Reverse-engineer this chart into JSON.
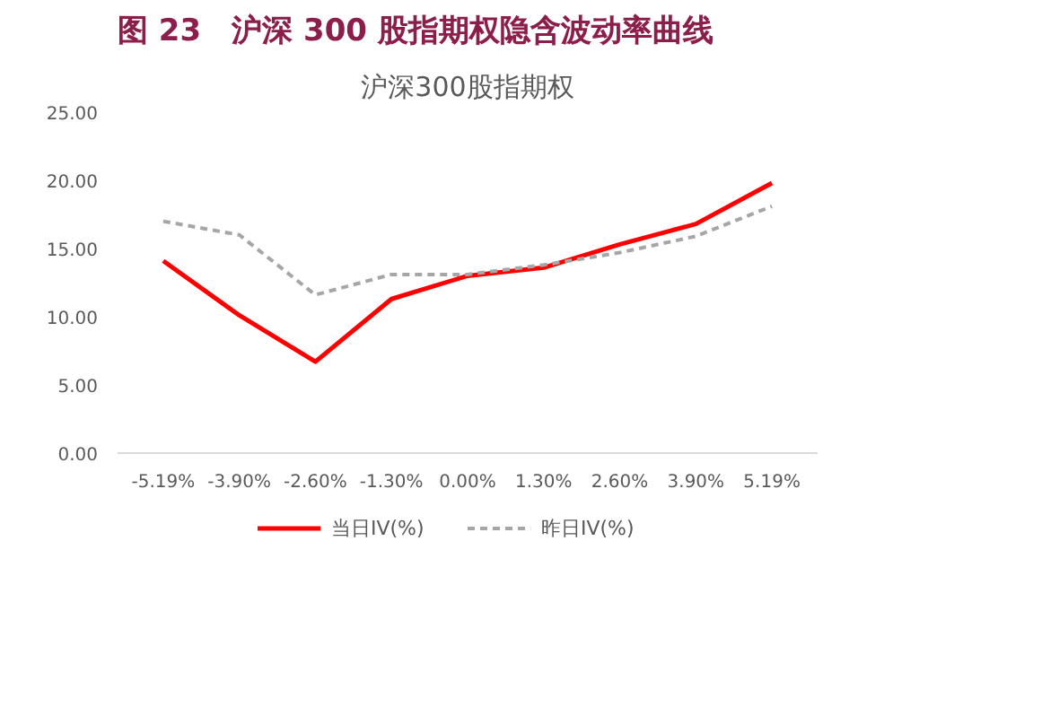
{
  "chart_data": {
    "type": "line",
    "title": "图 23　沪深 300 股指期权隐含波动率曲线",
    "subtitle": "沪深300股指期权",
    "categories": [
      "-5.19%",
      "-3.90%",
      "-2.60%",
      "-1.30%",
      "0.00%",
      "1.30%",
      "2.60%",
      "3.90%",
      "5.19%"
    ],
    "series": [
      {
        "name": "当日IV(%)",
        "color": "#ff0000",
        "line_style": "solid",
        "values": [
          14.1,
          10.1,
          6.7,
          11.3,
          13.0,
          13.6,
          15.3,
          16.8,
          19.8
        ]
      },
      {
        "name": "昨日IV(%)",
        "color": "#a6a6a6",
        "line_style": "dashed",
        "values": [
          17.0,
          16.0,
          11.6,
          13.1,
          13.1,
          13.8,
          14.7,
          15.9,
          18.1
        ]
      }
    ],
    "ylim": [
      0,
      25
    ],
    "yticks": [
      {
        "value": 0,
        "label": "0.00"
      },
      {
        "value": 5,
        "label": "5.00"
      },
      {
        "value": 10,
        "label": "10.00"
      },
      {
        "value": 15,
        "label": "15.00"
      },
      {
        "value": 20,
        "label": "20.00"
      },
      {
        "value": 25,
        "label": "25.00"
      }
    ],
    "grid": false,
    "legend": "bottom",
    "marker": "none"
  }
}
